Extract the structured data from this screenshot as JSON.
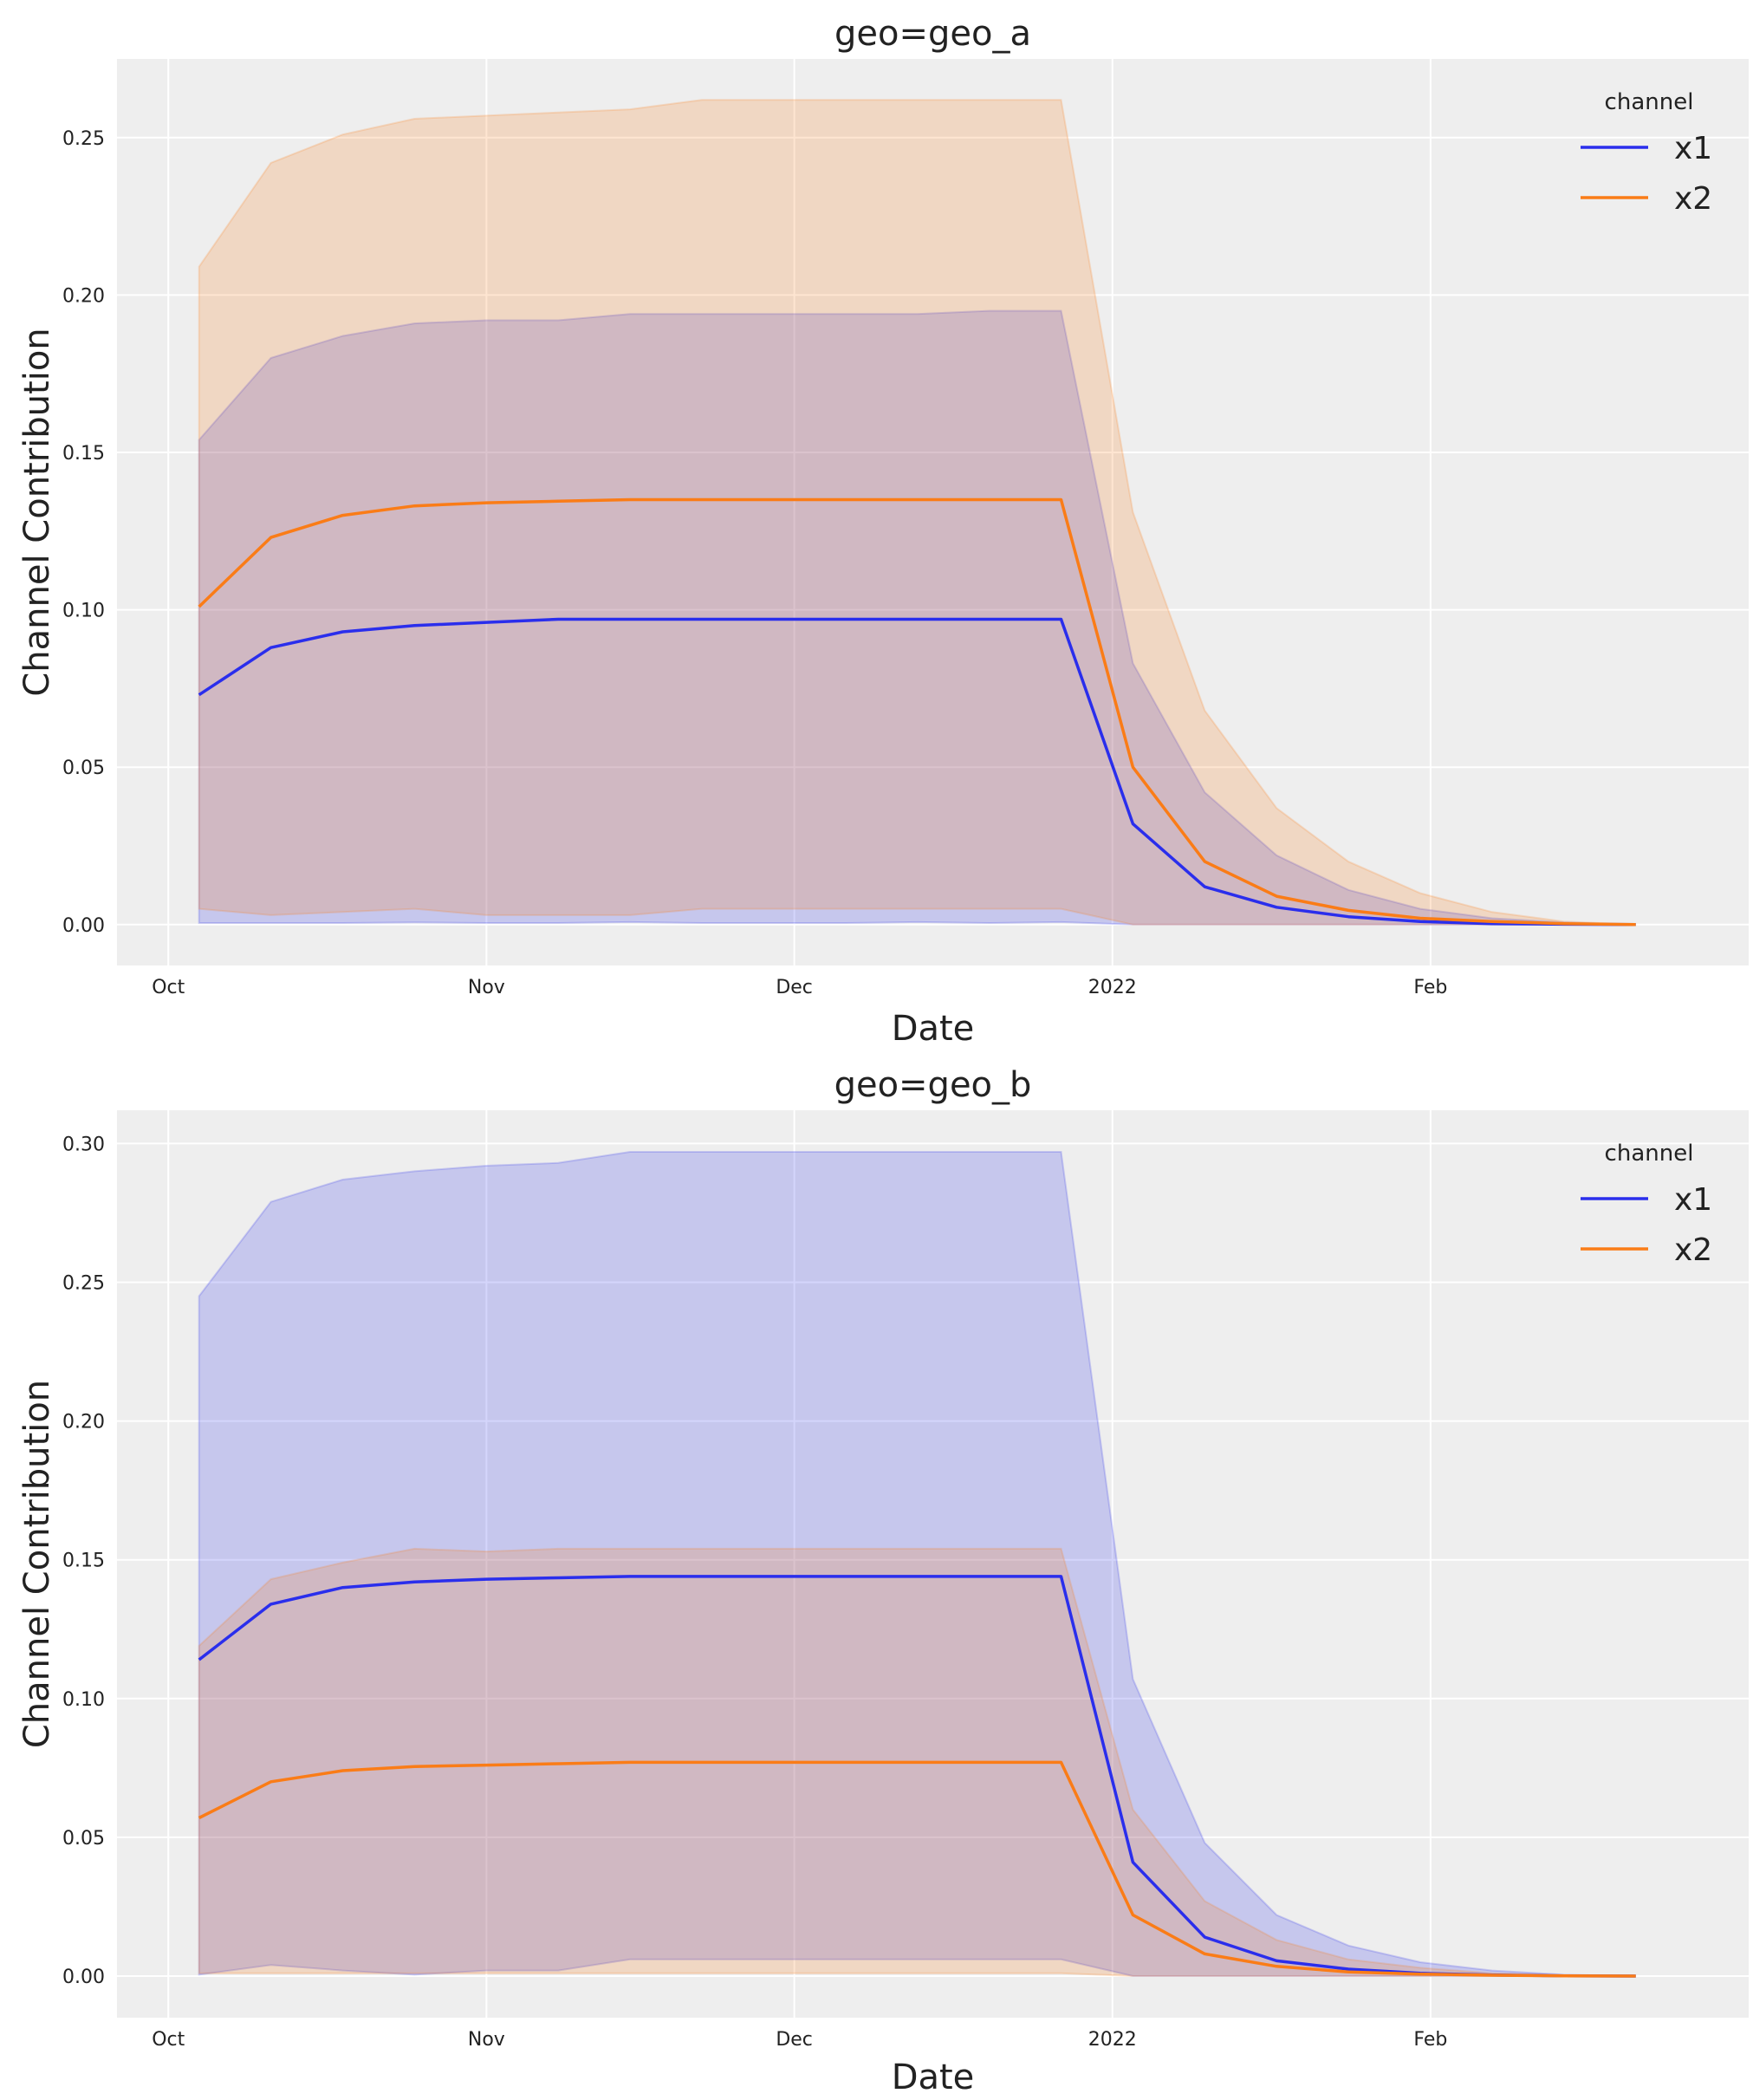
{
  "chart_data": [
    {
      "type": "area",
      "title": "geo=geo_a",
      "xlabel": "Date",
      "ylabel": "Channel Contribution",
      "x": [
        "2021-10-04",
        "2021-10-11",
        "2021-10-18",
        "2021-10-25",
        "2021-11-01",
        "2021-11-08",
        "2021-11-15",
        "2021-11-22",
        "2021-11-29",
        "2021-12-06",
        "2021-12-13",
        "2021-12-20",
        "2021-12-27",
        "2022-01-03",
        "2022-01-10",
        "2022-01-17",
        "2022-01-24",
        "2022-01-31",
        "2022-02-07",
        "2022-02-14",
        "2022-02-21"
      ],
      "xticks": [
        {
          "date": "2021-10-01",
          "label": "Oct"
        },
        {
          "date": "2021-11-01",
          "label": "Nov"
        },
        {
          "date": "2021-12-01",
          "label": "Dec"
        },
        {
          "date": "2022-01-01",
          "label": "2022"
        },
        {
          "date": "2022-02-01",
          "label": "Feb"
        }
      ],
      "yticks": [
        "0.00",
        "0.05",
        "0.10",
        "0.15",
        "0.20",
        "0.25"
      ],
      "ylim": [
        -0.013,
        0.275
      ],
      "grid": true,
      "legend": {
        "title": "channel",
        "placement": "top-right"
      },
      "series": [
        {
          "name": "x1",
          "color": "#2a2eec",
          "mean": [
            0.073,
            0.088,
            0.093,
            0.095,
            0.096,
            0.097,
            0.097,
            0.097,
            0.097,
            0.097,
            0.097,
            0.097,
            0.097,
            0.032,
            0.012,
            0.0055,
            0.0025,
            0.001,
            0.0003,
            0.0001,
            0
          ],
          "upper": [
            0.154,
            0.18,
            0.187,
            0.191,
            0.192,
            0.192,
            0.194,
            0.194,
            0.194,
            0.194,
            0.194,
            0.195,
            0.195,
            0.083,
            0.042,
            0.022,
            0.011,
            0.005,
            0.002,
            0.0007,
            0
          ],
          "lower": [
            0.0005,
            0.0005,
            0.0005,
            0.0007,
            0.0005,
            0.0005,
            0.0008,
            0.0005,
            0.0005,
            0.0005,
            0.0008,
            0.0005,
            0.0008,
            0,
            0,
            0,
            0,
            0,
            0,
            0,
            0
          ]
        },
        {
          "name": "x2",
          "color": "#fa7c17",
          "mean": [
            0.101,
            0.123,
            0.13,
            0.133,
            0.134,
            0.1345,
            0.135,
            0.135,
            0.135,
            0.135,
            0.135,
            0.135,
            0.135,
            0.05,
            0.02,
            0.009,
            0.0045,
            0.002,
            0.001,
            0.0003,
            0
          ],
          "upper": [
            0.209,
            0.242,
            0.251,
            0.256,
            0.257,
            0.258,
            0.259,
            0.262,
            0.262,
            0.262,
            0.262,
            0.262,
            0.262,
            0.131,
            0.068,
            0.037,
            0.02,
            0.01,
            0.004,
            0.001,
            0
          ],
          "lower": [
            0.005,
            0.003,
            0.004,
            0.005,
            0.003,
            0.003,
            0.003,
            0.005,
            0.005,
            0.005,
            0.005,
            0.005,
            0.005,
            0,
            0,
            0,
            0,
            0,
            0,
            0,
            0
          ]
        }
      ]
    },
    {
      "type": "area",
      "title": "geo=geo_b",
      "xlabel": "Date",
      "ylabel": "Channel Contribution",
      "x": [
        "2021-10-04",
        "2021-10-11",
        "2021-10-18",
        "2021-10-25",
        "2021-11-01",
        "2021-11-08",
        "2021-11-15",
        "2021-11-22",
        "2021-11-29",
        "2021-12-06",
        "2021-12-13",
        "2021-12-20",
        "2021-12-27",
        "2022-01-03",
        "2022-01-10",
        "2022-01-17",
        "2022-01-24",
        "2022-01-31",
        "2022-02-07",
        "2022-02-14",
        "2022-02-21"
      ],
      "xticks": [
        {
          "date": "2021-10-01",
          "label": "Oct"
        },
        {
          "date": "2021-11-01",
          "label": "Nov"
        },
        {
          "date": "2021-12-01",
          "label": "Dec"
        },
        {
          "date": "2022-01-01",
          "label": "2022"
        },
        {
          "date": "2022-02-01",
          "label": "Feb"
        }
      ],
      "yticks": [
        "0.00",
        "0.05",
        "0.10",
        "0.15",
        "0.20",
        "0.25",
        "0.30"
      ],
      "ylim": [
        -0.015,
        0.312
      ],
      "grid": true,
      "legend": {
        "title": "channel",
        "placement": "top-right"
      },
      "series": [
        {
          "name": "x1",
          "color": "#2a2eec",
          "mean": [
            0.114,
            0.134,
            0.14,
            0.142,
            0.143,
            0.1435,
            0.144,
            0.144,
            0.144,
            0.144,
            0.144,
            0.144,
            0.144,
            0.041,
            0.014,
            0.0055,
            0.0025,
            0.001,
            0.0004,
            0.0001,
            0
          ],
          "upper": [
            0.245,
            0.279,
            0.287,
            0.29,
            0.292,
            0.293,
            0.297,
            0.297,
            0.297,
            0.297,
            0.297,
            0.297,
            0.297,
            0.107,
            0.048,
            0.022,
            0.011,
            0.005,
            0.002,
            0.0005,
            0
          ],
          "lower": [
            0.0005,
            0.004,
            0.002,
            0.0005,
            0.002,
            0.002,
            0.006,
            0.006,
            0.006,
            0.006,
            0.006,
            0.006,
            0.006,
            0,
            0,
            0,
            0,
            0,
            0,
            0,
            0
          ]
        },
        {
          "name": "x2",
          "color": "#fa7c17",
          "mean": [
            0.057,
            0.07,
            0.074,
            0.0755,
            0.076,
            0.0765,
            0.077,
            0.077,
            0.077,
            0.077,
            0.077,
            0.077,
            0.077,
            0.022,
            0.008,
            0.0035,
            0.0015,
            0.0007,
            0.0003,
            0.0001,
            0
          ],
          "upper": [
            0.119,
            0.143,
            0.149,
            0.154,
            0.153,
            0.154,
            0.154,
            0.154,
            0.154,
            0.154,
            0.154,
            0.154,
            0.154,
            0.06,
            0.027,
            0.013,
            0.006,
            0.003,
            0.001,
            0.0003,
            0
          ],
          "lower": [
            0.001,
            0.001,
            0.001,
            0.001,
            0.001,
            0.001,
            0.001,
            0.001,
            0.001,
            0.001,
            0.001,
            0.001,
            0.001,
            0,
            0,
            0,
            0,
            0,
            0,
            0,
            0
          ]
        }
      ]
    }
  ]
}
